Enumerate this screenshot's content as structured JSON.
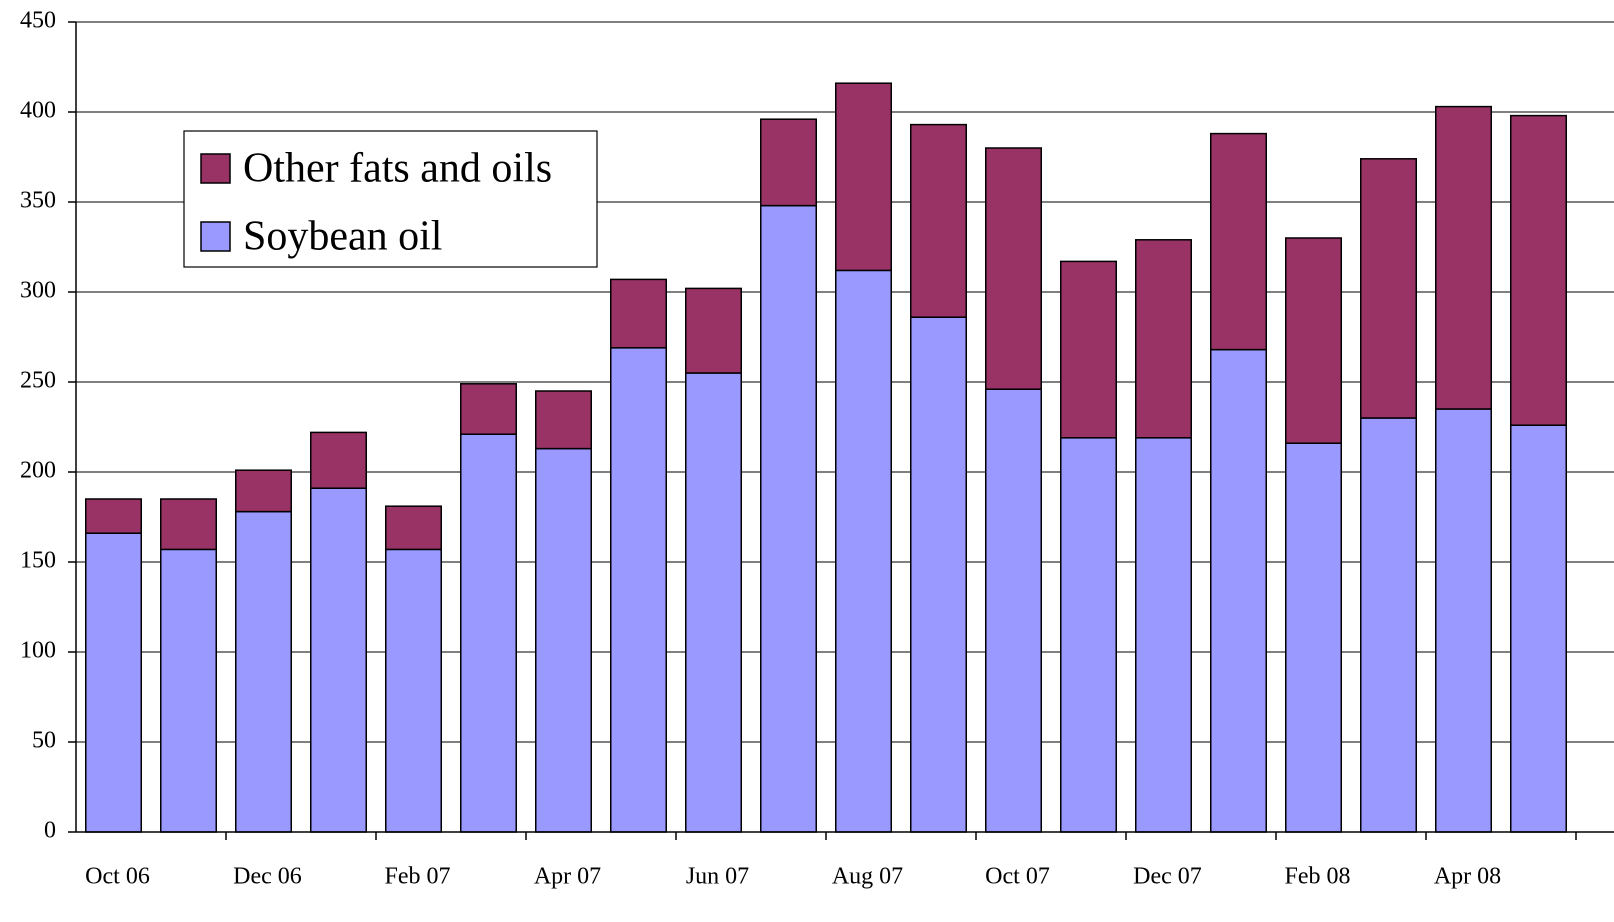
{
  "chart_data": {
    "type": "stacked_bar",
    "categories": [
      "Oct 06",
      null,
      "Dec 06",
      null,
      "Feb 07",
      null,
      "Apr 07",
      null,
      "Jun 07",
      null,
      "Aug 07",
      null,
      "Oct 07",
      null,
      "Dec 07",
      null,
      "Feb 08",
      null,
      "Apr 08",
      null
    ],
    "series": [
      {
        "name": "Soybean oil",
        "color": "#9999ff",
        "values": [
          166,
          157,
          178,
          191,
          157,
          221,
          213,
          269,
          255,
          348,
          312,
          286,
          246,
          219,
          219,
          268,
          216,
          230,
          235,
          226
        ]
      },
      {
        "name": "Other fats and oils",
        "color": "#993366",
        "values": [
          19,
          28,
          23,
          31,
          24,
          28,
          32,
          38,
          47,
          48,
          104,
          107,
          134,
          98,
          110,
          120,
          114,
          144,
          168,
          172
        ]
      }
    ],
    "ylim": [
      0,
      450
    ],
    "yticks": [
      0,
      50,
      100,
      150,
      200,
      250,
      300,
      350,
      400,
      450
    ],
    "grid": true
  }
}
